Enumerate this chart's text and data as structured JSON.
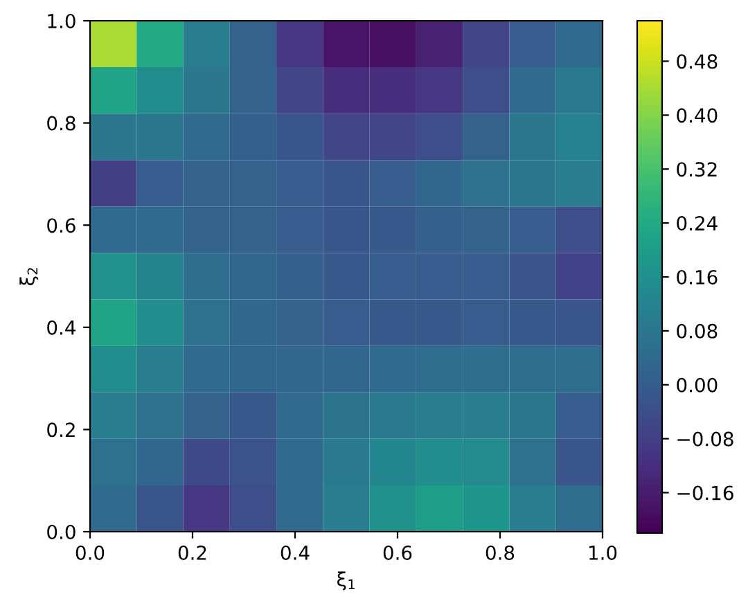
{
  "chart_data": {
    "type": "heatmap",
    "xlabel": "ξ$_{1}$",
    "ylabel": "ξ$_{2}$",
    "xlim": [
      0.0,
      1.0
    ],
    "ylim": [
      0.0,
      1.0
    ],
    "xticks": [
      {
        "value": 0,
        "label": "0.0"
      },
      0.2,
      0.4,
      0.6,
      0.8,
      {
        "value": 1,
        "label": "1.0"
      }
    ],
    "yticks": [
      {
        "value": 0,
        "label": "0.0"
      },
      0.2,
      0.4,
      0.6,
      0.8,
      {
        "value": 1,
        "label": "1.0"
      }
    ],
    "clim": [
      -0.22,
      0.54
    ],
    "cticks": [
      {
        "value": -0.16,
        "label": "−0.16"
      },
      {
        "value": -0.08,
        "label": "−0.08"
      },
      {
        "value": 0.0,
        "label": "0.00"
      },
      {
        "value": 0.08,
        "label": "0.08"
      },
      {
        "value": 0.16,
        "label": "0.16"
      },
      {
        "value": 0.24,
        "label": "0.24"
      },
      {
        "value": 0.32,
        "label": "0.32"
      },
      {
        "value": 0.4,
        "label": "0.40"
      },
      {
        "value": 0.48,
        "label": "0.48"
      }
    ],
    "cells": [
      [
        0.44,
        0.24,
        0.1,
        0.02,
        -0.1,
        -0.18,
        -0.19,
        -0.15,
        -0.06,
        0.0,
        0.04
      ],
      [
        0.22,
        0.15,
        0.08,
        0.02,
        -0.06,
        -0.12,
        -0.12,
        -0.1,
        -0.04,
        0.04,
        0.09
      ],
      [
        0.08,
        0.08,
        0.04,
        0.01,
        -0.02,
        -0.06,
        -0.06,
        -0.04,
        0.02,
        0.08,
        0.11
      ],
      [
        -0.08,
        0.0,
        0.02,
        0.02,
        0.0,
        -0.02,
        0.0,
        0.03,
        0.06,
        0.08,
        0.1
      ],
      [
        0.04,
        0.04,
        0.02,
        0.02,
        0.0,
        -0.02,
        -0.01,
        0.01,
        0.02,
        0.0,
        -0.04
      ],
      [
        0.17,
        0.12,
        0.05,
        0.03,
        0.01,
        -0.01,
        0.0,
        0.0,
        0.0,
        -0.03,
        -0.07
      ],
      [
        0.22,
        0.15,
        0.06,
        0.03,
        0.02,
        0.0,
        -0.01,
        -0.01,
        0.0,
        -0.01,
        -0.02
      ],
      [
        0.15,
        0.1,
        0.04,
        0.03,
        0.03,
        0.03,
        0.04,
        0.05,
        0.05,
        0.05,
        0.05
      ],
      [
        0.1,
        0.06,
        0.02,
        -0.01,
        0.04,
        0.07,
        0.09,
        0.1,
        0.1,
        0.08,
        0.0
      ],
      [
        0.06,
        0.03,
        -0.05,
        -0.03,
        0.04,
        0.09,
        0.13,
        0.15,
        0.14,
        0.06,
        -0.02
      ],
      [
        0.04,
        -0.02,
        -0.1,
        -0.04,
        0.04,
        0.1,
        0.16,
        0.2,
        0.18,
        0.1,
        0.05
      ]
    ]
  }
}
